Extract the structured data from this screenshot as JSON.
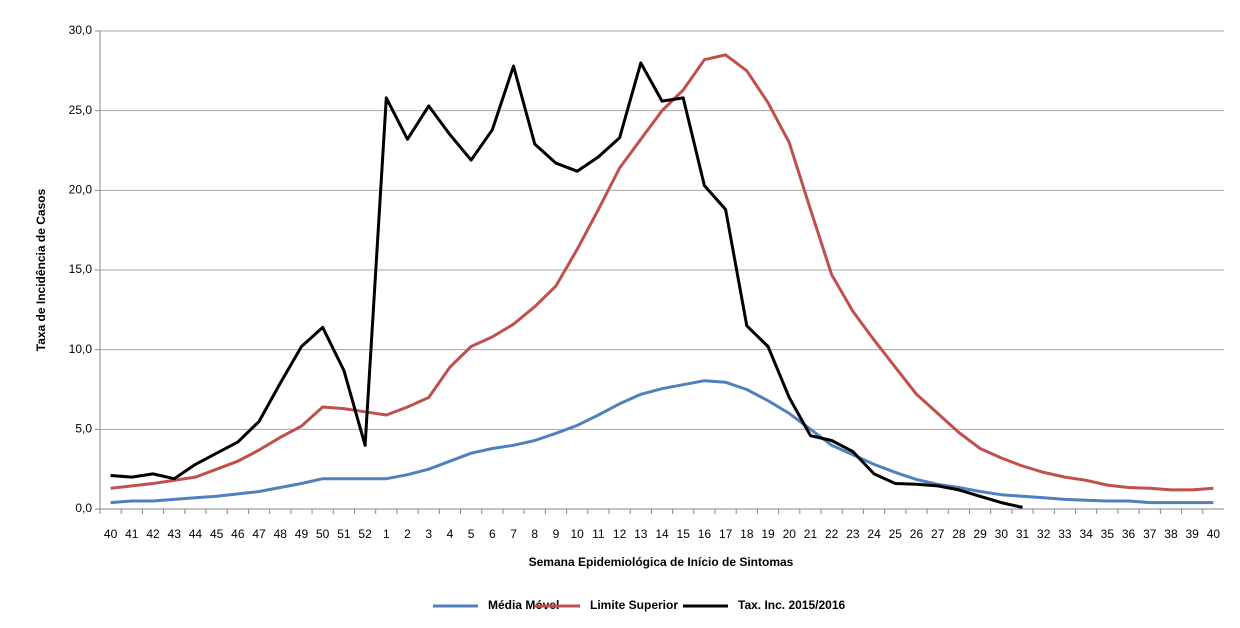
{
  "chart_data": {
    "type": "line",
    "y_label": "Taxa de Incidência de Casos",
    "x_label": "Semana Epidemiológica de Início de Sintomas",
    "categories": [
      "40",
      "41",
      "42",
      "43",
      "44",
      "45",
      "46",
      "47",
      "48",
      "49",
      "50",
      "51",
      "52",
      "1",
      "2",
      "3",
      "4",
      "5",
      "6",
      "7",
      "8",
      "9",
      "10",
      "11",
      "12",
      "13",
      "14",
      "15",
      "16",
      "17",
      "18",
      "19",
      "20",
      "21",
      "22",
      "23",
      "24",
      "25",
      "26",
      "27",
      "28",
      "29",
      "30",
      "31",
      "32",
      "33",
      "34",
      "35",
      "36",
      "37",
      "38",
      "39",
      "40"
    ],
    "series": [
      {
        "name": "Média Móvel",
        "color": "#4f81bd",
        "values": [
          0.4,
          0.5,
          0.5,
          0.6,
          0.7,
          0.8,
          0.95,
          1.1,
          1.35,
          1.6,
          1.9,
          1.9,
          1.9,
          1.9,
          2.15,
          2.5,
          3.0,
          3.5,
          3.8,
          4.0,
          4.3,
          4.75,
          5.25,
          5.9,
          6.6,
          7.2,
          7.55,
          7.8,
          8.05,
          7.95,
          7.5,
          6.8,
          6.0,
          5.0,
          4.0,
          3.4,
          2.8,
          2.3,
          1.85,
          1.55,
          1.35,
          1.1,
          0.9,
          0.8,
          0.7,
          0.6,
          0.55,
          0.5,
          0.5,
          0.4,
          0.4,
          0.4,
          0.4
        ]
      },
      {
        "name": "Limite Superior",
        "color": "#c0504d",
        "values": [
          1.3,
          1.45,
          1.6,
          1.8,
          2.0,
          2.5,
          3.0,
          3.7,
          4.5,
          5.2,
          6.4,
          6.3,
          6.1,
          5.9,
          6.4,
          7.0,
          8.9,
          10.2,
          10.8,
          11.6,
          12.7,
          14.0,
          16.3,
          18.8,
          21.4,
          23.2,
          25.0,
          26.3,
          28.2,
          28.5,
          27.5,
          25.5,
          23.0,
          18.8,
          14.7,
          12.4,
          10.6,
          8.9,
          7.2,
          6.0,
          4.8,
          3.8,
          3.2,
          2.7,
          2.3,
          2.0,
          1.8,
          1.5,
          1.35,
          1.3,
          1.2,
          1.2,
          1.3
        ]
      },
      {
        "name": "Tax. Inc. 2015/2016",
        "color": "#000000",
        "values": [
          2.1,
          2.0,
          2.2,
          1.9,
          2.8,
          3.5,
          4.2,
          5.5,
          7.9,
          10.2,
          11.4,
          8.7,
          4.0,
          25.8,
          23.2,
          25.3,
          23.5,
          21.9,
          23.8,
          27.8,
          22.9,
          21.7,
          21.2,
          22.1,
          23.3,
          28.0,
          25.6,
          25.8,
          20.3,
          18.8,
          11.5,
          10.2,
          7.0,
          4.6,
          4.3,
          3.6,
          2.2,
          1.6,
          1.55,
          1.45,
          1.2,
          0.8,
          0.4,
          0.1,
          null,
          null,
          null,
          null,
          null,
          null,
          null,
          null,
          null
        ]
      }
    ],
    "ylim": [
      0,
      30
    ],
    "yticks": [
      {
        "value": 0,
        "label": "0,0"
      },
      {
        "value": 5,
        "label": "5,0"
      },
      {
        "value": 10,
        "label": "10,0"
      },
      {
        "value": 15,
        "label": "15,0"
      },
      {
        "value": 20,
        "label": "20,0"
      },
      {
        "value": 25,
        "label": "25,0"
      },
      {
        "value": 30,
        "label": "30,0"
      }
    ],
    "grid": true,
    "legend": "bottom"
  }
}
